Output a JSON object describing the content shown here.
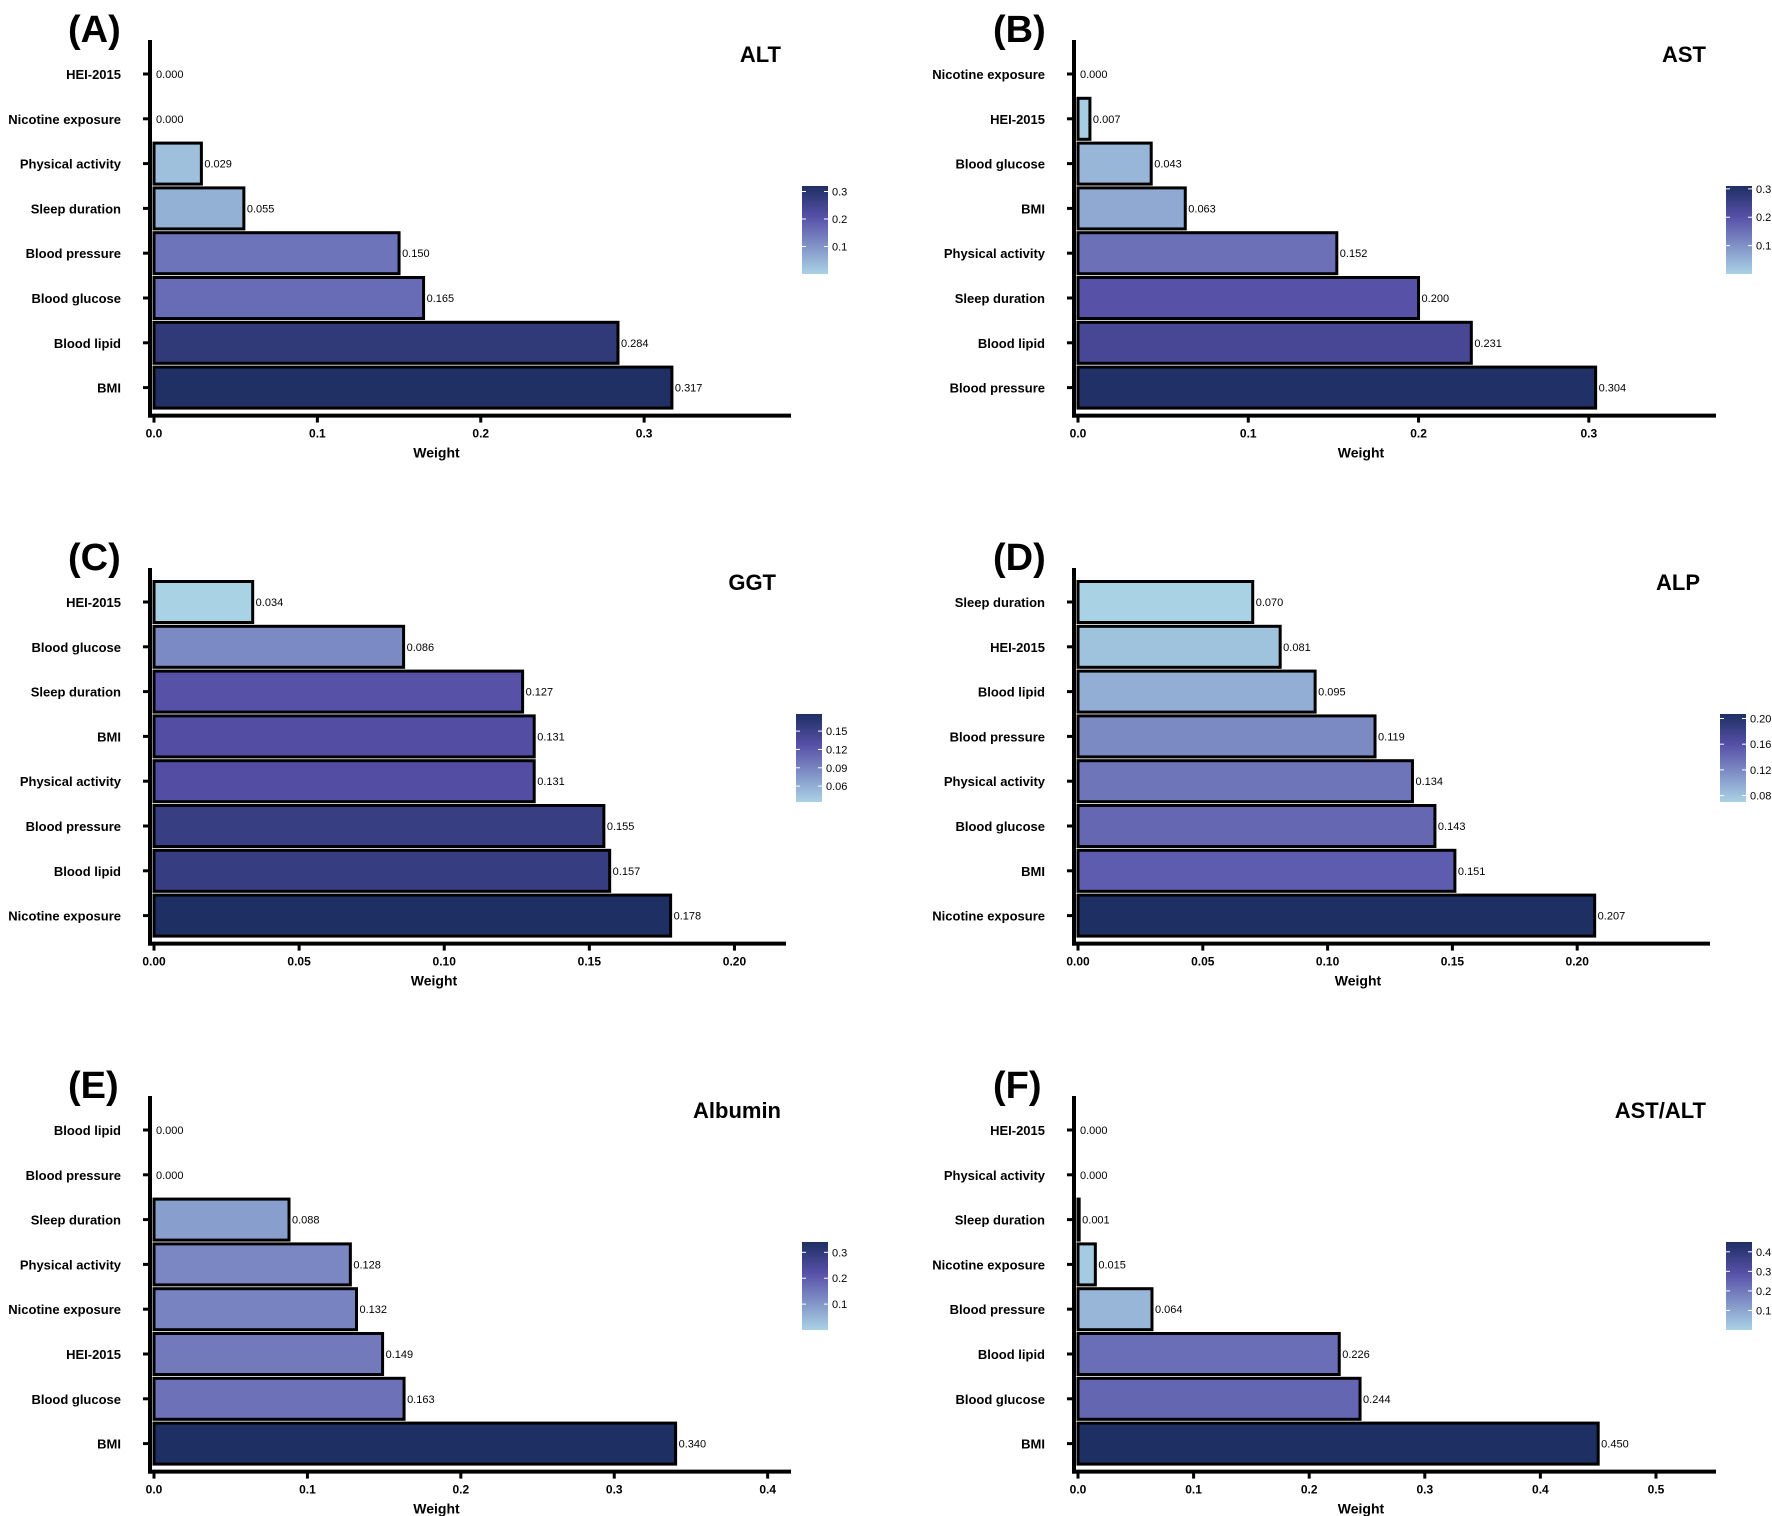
{
  "chart_data": [
    {
      "panel": "(A)",
      "title": "ALT",
      "type": "bar",
      "orientation": "horizontal",
      "xlabel": "Weight",
      "xlim": [
        0,
        0.385
      ],
      "xticks": [
        0.0,
        0.1,
        0.2,
        0.3
      ],
      "xtick_labels": [
        "0.0",
        "0.1",
        "0.2",
        "0.3"
      ],
      "categories": [
        "HEI-2015",
        "Nicotine exposure",
        "Physical activity",
        "Sleep duration",
        "Blood pressure",
        "Blood glucose",
        "Blood lipid",
        "BMI"
      ],
      "values": [
        0.0,
        0.0,
        0.029,
        0.055,
        0.15,
        0.165,
        0.284,
        0.317
      ],
      "value_labels": [
        "0.000",
        "0.000",
        "0.029",
        "0.055",
        "0.150",
        "0.165",
        "0.284",
        "0.317"
      ],
      "colorbar": {
        "min": 0.0,
        "max": 0.32,
        "ticks": [
          0.1,
          0.2,
          0.3
        ],
        "tick_labels": [
          "0.1",
          "0.2",
          "0.3"
        ]
      }
    },
    {
      "panel": "(B)",
      "title": "AST",
      "type": "bar",
      "orientation": "horizontal",
      "xlabel": "Weight",
      "xlim": [
        0,
        0.37
      ],
      "xticks": [
        0.0,
        0.1,
        0.2,
        0.3
      ],
      "xtick_labels": [
        "0.0",
        "0.1",
        "0.2",
        "0.3"
      ],
      "categories": [
        "Nicotine exposure",
        "HEI-2015",
        "Blood glucose",
        "BMI",
        "Physical activity",
        "Sleep duration",
        "Blood lipid",
        "Blood pressure"
      ],
      "values": [
        0.0,
        0.007,
        0.043,
        0.063,
        0.152,
        0.2,
        0.231,
        0.304
      ],
      "value_labels": [
        "0.000",
        "0.007",
        "0.043",
        "0.063",
        "0.152",
        "0.200",
        "0.231",
        "0.304"
      ],
      "colorbar": {
        "min": 0.0,
        "max": 0.31,
        "ticks": [
          0.1,
          0.2,
          0.3
        ],
        "tick_labels": [
          "0.1",
          "0.2",
          "0.3"
        ]
      }
    },
    {
      "panel": "(C)",
      "title": "GGT",
      "type": "bar",
      "orientation": "horizontal",
      "xlabel": "Weight",
      "xlim": [
        0,
        0.215
      ],
      "xticks": [
        0.0,
        0.05,
        0.1,
        0.15,
        0.2
      ],
      "xtick_labels": [
        "0.00",
        "0.05",
        "0.10",
        "0.15",
        "0.20"
      ],
      "categories": [
        "HEI-2015",
        "Blood glucose",
        "Sleep duration",
        "BMI",
        "Physical activity",
        "Blood pressure",
        "Blood lipid",
        "Nicotine exposure"
      ],
      "values": [
        0.034,
        0.086,
        0.127,
        0.131,
        0.131,
        0.155,
        0.157,
        0.178
      ],
      "value_labels": [
        "0.034",
        "0.086",
        "0.127",
        "0.131",
        "0.131",
        "0.155",
        "0.157",
        "0.178"
      ],
      "colorbar": {
        "min": 0.034,
        "max": 0.178,
        "ticks": [
          0.06,
          0.09,
          0.12,
          0.15
        ],
        "tick_labels": [
          "0.06",
          "0.09",
          "0.12",
          "0.15"
        ]
      }
    },
    {
      "panel": "(D)",
      "title": "ALP",
      "type": "bar",
      "orientation": "horizontal",
      "xlabel": "Weight",
      "xlim": [
        0,
        0.25
      ],
      "xticks": [
        0.0,
        0.05,
        0.1,
        0.15,
        0.2
      ],
      "xtick_labels": [
        "0.00",
        "0.05",
        "0.10",
        "0.15",
        "0.20"
      ],
      "categories": [
        "Sleep duration",
        "HEI-2015",
        "Blood lipid",
        "Blood pressure",
        "Physical activity",
        "Blood glucose",
        "BMI",
        "Nicotine exposure"
      ],
      "values": [
        0.07,
        0.081,
        0.095,
        0.119,
        0.134,
        0.143,
        0.151,
        0.207
      ],
      "value_labels": [
        "0.070",
        "0.081",
        "0.095",
        "0.119",
        "0.134",
        "0.143",
        "0.151",
        "0.207"
      ],
      "colorbar": {
        "min": 0.07,
        "max": 0.207,
        "ticks": [
          0.08,
          0.12,
          0.16,
          0.2
        ],
        "tick_labels": [
          "0.08",
          "0.12",
          "0.16",
          "0.20"
        ]
      }
    },
    {
      "panel": "(E)",
      "title": "Albumin",
      "type": "bar",
      "orientation": "horizontal",
      "xlabel": "Weight",
      "xlim": [
        0,
        0.41
      ],
      "xticks": [
        0.0,
        0.1,
        0.2,
        0.3,
        0.4
      ],
      "xtick_labels": [
        "0.0",
        "0.1",
        "0.2",
        "0.3",
        "0.4"
      ],
      "categories": [
        "Blood lipid",
        "Blood pressure",
        "Sleep duration",
        "Physical activity",
        "Nicotine exposure",
        "HEI-2015",
        "Blood glucose",
        "BMI"
      ],
      "values": [
        0.0,
        0.0,
        0.088,
        0.128,
        0.132,
        0.149,
        0.163,
        0.34
      ],
      "value_labels": [
        "0.000",
        "0.000",
        "0.088",
        "0.128",
        "0.132",
        "0.149",
        "0.163",
        "0.340"
      ],
      "colorbar": {
        "min": 0.0,
        "max": 0.34,
        "ticks": [
          0.1,
          0.2,
          0.3
        ],
        "tick_labels": [
          "0.1",
          "0.2",
          "0.3"
        ]
      }
    },
    {
      "panel": "(F)",
      "title": "AST/ALT",
      "type": "bar",
      "orientation": "horizontal",
      "xlabel": "Weight",
      "xlim": [
        0,
        0.545
      ],
      "xticks": [
        0.0,
        0.1,
        0.2,
        0.3,
        0.4,
        0.5
      ],
      "xtick_labels": [
        "0.0",
        "0.1",
        "0.2",
        "0.3",
        "0.4",
        "0.5"
      ],
      "categories": [
        "HEI-2015",
        "Physical activity",
        "Sleep duration",
        "Nicotine exposure",
        "Blood pressure",
        "Blood lipid",
        "Blood glucose",
        "BMI"
      ],
      "values": [
        0.0,
        0.0,
        0.001,
        0.015,
        0.064,
        0.226,
        0.244,
        0.45
      ],
      "value_labels": [
        "0.000",
        "0.000",
        "0.001",
        "0.015",
        "0.064",
        "0.226",
        "0.244",
        "0.450"
      ],
      "colorbar": {
        "min": 0.0,
        "max": 0.45,
        "ticks": [
          0.1,
          0.2,
          0.3,
          0.4
        ],
        "tick_labels": [
          "0.1",
          "0.2",
          "0.3",
          "0.4"
        ]
      }
    }
  ],
  "colors": {
    "low": "#a9d2e5",
    "mid": "#5750a8",
    "high": "#1e2f63",
    "outline": "#000000"
  }
}
